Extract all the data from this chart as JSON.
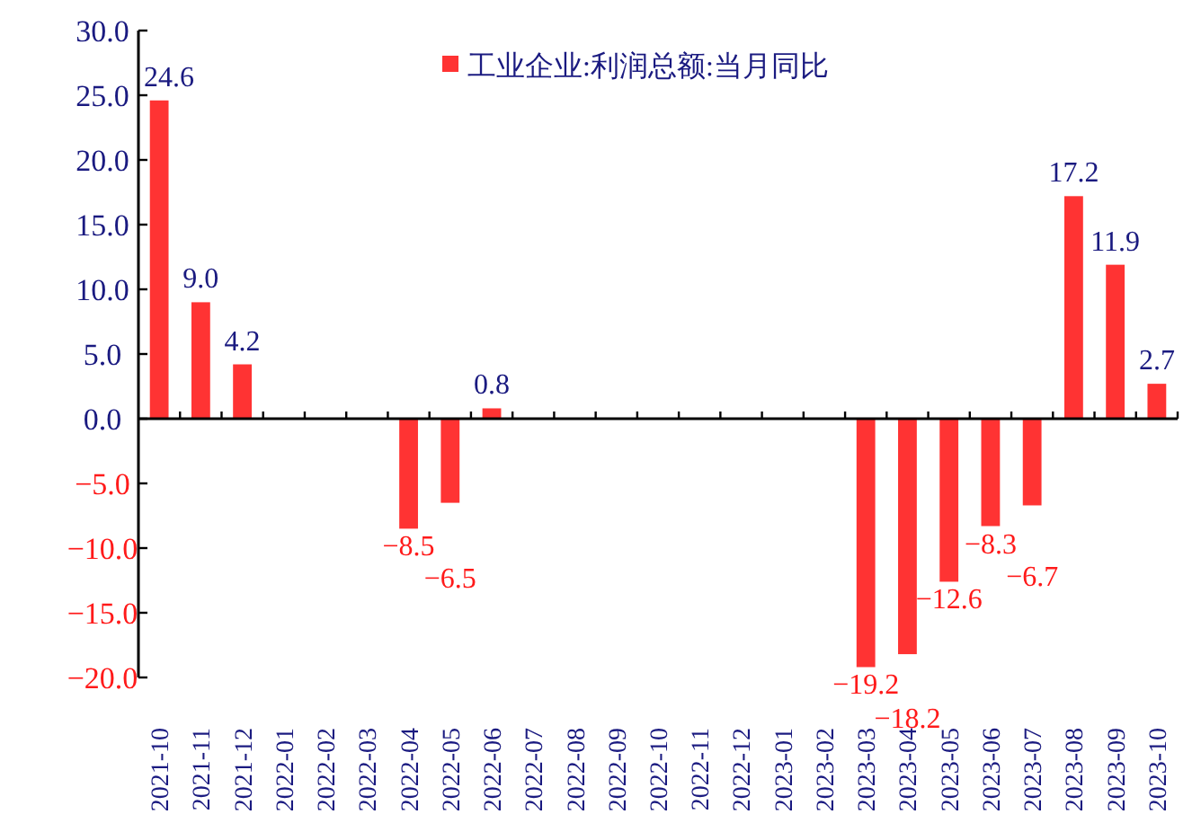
{
  "chart_data": {
    "type": "bar",
    "categories": [
      "2021-10",
      "2021-11",
      "2021-12",
      "2022-01",
      "2022-02",
      "2022-03",
      "2022-04",
      "2022-05",
      "2022-06",
      "2022-07",
      "2022-08",
      "2022-09",
      "2022-10",
      "2022-11",
      "2022-12",
      "2023-01",
      "2023-02",
      "2023-03",
      "2023-04",
      "2023-05",
      "2023-06",
      "2023-07",
      "2023-08",
      "2023-09",
      "2023-10"
    ],
    "series": [
      {
        "name": "工业企业:利润总额:当月同比",
        "color": "#ff3333",
        "values": [
          24.6,
          9.0,
          4.2,
          null,
          null,
          null,
          -8.5,
          -6.5,
          0.8,
          null,
          null,
          null,
          null,
          null,
          null,
          null,
          null,
          -19.2,
          -18.2,
          -12.6,
          -8.3,
          -6.7,
          17.2,
          11.9,
          2.7
        ],
        "value_labels": [
          "24.6",
          "9.0",
          "4.2",
          null,
          null,
          null,
          "−8.5",
          "−6.5",
          "0.8",
          null,
          null,
          null,
          null,
          null,
          null,
          null,
          null,
          "−19.2",
          "−18.2",
          "−12.6",
          "−8.3",
          "−6.7",
          "17.2",
          "11.9",
          "2.7"
        ]
      }
    ],
    "ylim": [
      -20,
      30
    ],
    "yticks": [
      {
        "value": -20,
        "label": "−20.0"
      },
      {
        "value": -15,
        "label": "−15.0"
      },
      {
        "value": -10,
        "label": "−10.0"
      },
      {
        "value": -5,
        "label": "−5.0"
      },
      {
        "value": 0,
        "label": "0.0"
      },
      {
        "value": 5,
        "label": "5.0"
      },
      {
        "value": 10,
        "label": "10.0"
      },
      {
        "value": 15,
        "label": "15.0"
      },
      {
        "value": 20,
        "label": "20.0"
      },
      {
        "value": 25,
        "label": "25.0"
      },
      {
        "value": 30,
        "label": "30.0"
      }
    ],
    "legend": "top"
  }
}
